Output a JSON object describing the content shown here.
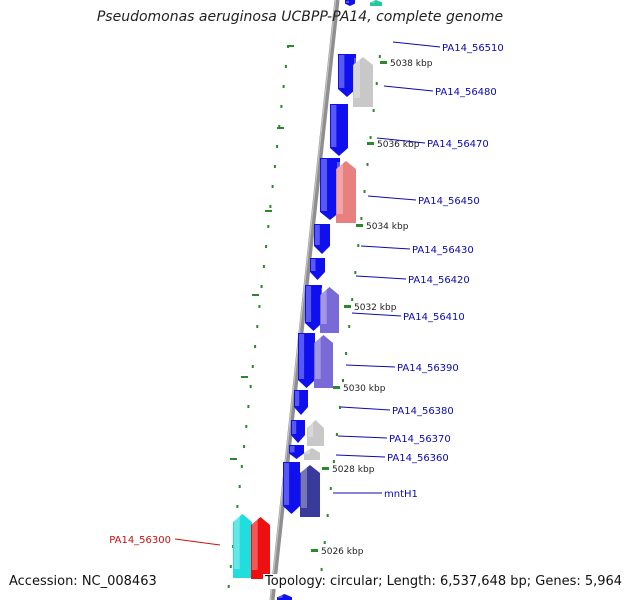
{
  "title": "Pseudomonas aeruginosa UCBPP-PA14, complete genome",
  "accession_text": "Accession: NC_008463",
  "summary_text": "Topology: circular; Length: 6,537,648 bp; Genes: 5,964",
  "colors": {
    "backbone": "#8f8f8f",
    "dotted_track": "#2a8a2a",
    "gene_blue": "#1010ee",
    "gene_grey": "#c8c8c8",
    "gene_salmon": "#e88080",
    "gene_purple": "#7a6ad8",
    "gene_darkpurple": "#3a3a9a",
    "gene_cyan": "#22dddd",
    "gene_red": "#ee1010",
    "gene_teal": "#22c8a0",
    "label_blue": "#0a0ab4",
    "label_red": "#cc1010"
  },
  "ticks": [
    "5038 kbp",
    "5036 kbp",
    "5034 kbp",
    "5032 kbp",
    "5030 kbp",
    "5028 kbp",
    "5026 kbp"
  ],
  "gene_labels": [
    {
      "name": "PA14_56510",
      "color": "blue"
    },
    {
      "name": "PA14_56480",
      "color": "blue"
    },
    {
      "name": "PA14_56470",
      "color": "blue"
    },
    {
      "name": "PA14_56450",
      "color": "blue"
    },
    {
      "name": "PA14_56430",
      "color": "blue"
    },
    {
      "name": "PA14_56420",
      "color": "blue"
    },
    {
      "name": "PA14_56410",
      "color": "blue"
    },
    {
      "name": "PA14_56390",
      "color": "blue"
    },
    {
      "name": "PA14_56380",
      "color": "blue"
    },
    {
      "name": "PA14_56370",
      "color": "blue"
    },
    {
      "name": "PA14_56360",
      "color": "blue"
    },
    {
      "name": "mntH1",
      "color": "blue"
    },
    {
      "name": "PA14_56300",
      "color": "red"
    }
  ]
}
